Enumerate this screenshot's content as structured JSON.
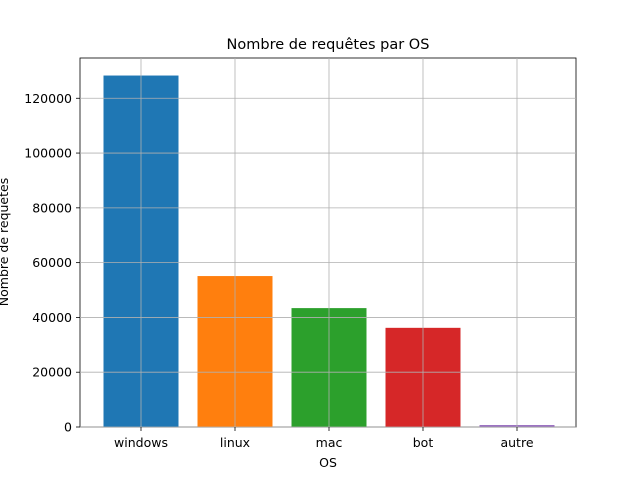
{
  "chart_data": {
    "type": "bar",
    "title": "Nombre de requêtes par OS",
    "xlabel": "OS",
    "ylabel": "Nombre de requêtes",
    "categories": [
      "windows",
      "linux",
      "mac",
      "bot",
      "autre"
    ],
    "values": [
      128300,
      55100,
      43400,
      36200,
      700
    ],
    "colors": [
      "#1f77b4",
      "#ff7f0e",
      "#2ca02c",
      "#d62728",
      "#9467bd"
    ],
    "ylim": [
      0,
      134700
    ],
    "yticks": [
      0,
      20000,
      40000,
      60000,
      80000,
      100000,
      120000
    ],
    "grid": true
  }
}
